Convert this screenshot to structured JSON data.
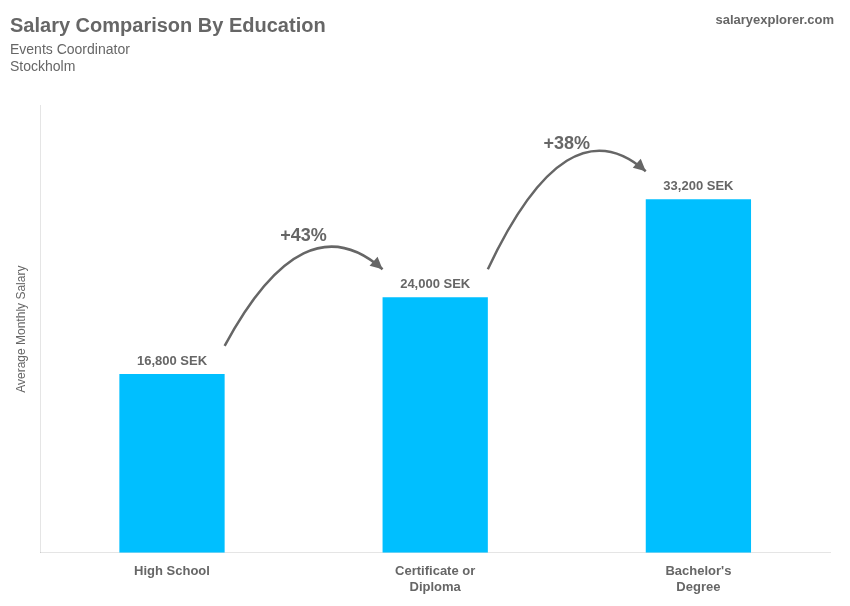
{
  "chart_data": {
    "type": "bar",
    "title": "Salary Comparison By Education",
    "subtitle": "Events Coordinator",
    "location": "Stockholm",
    "watermark": "salaryexplorer.com",
    "y_label": "Average Monthly Salary",
    "categories": [
      "High School",
      "Certificate or\nDiploma",
      "Bachelor's\nDegree"
    ],
    "values": [
      16800,
      24000,
      33200
    ],
    "value_labels": [
      "16,800 SEK",
      "24,000 SEK",
      "33,200 SEK"
    ],
    "data_labels": true,
    "pct_labels": [
      "+43%",
      "+38%"
    ],
    "color": "#00bfff",
    "ylim": [
      0,
      42000
    ],
    "grid": false,
    "tick_labels": "x"
  }
}
